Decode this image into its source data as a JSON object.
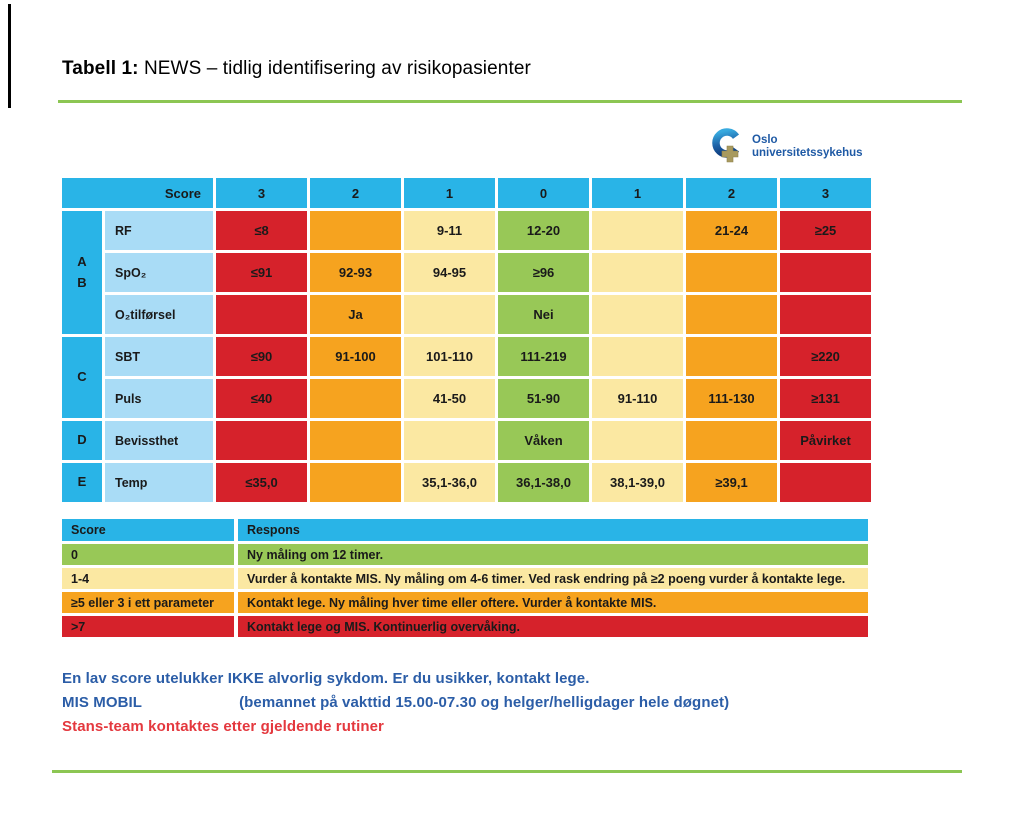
{
  "page": {
    "title_bold": "Tabell 1:",
    "title_rest": " NEWS – tidlig identifisering av risikopasienter"
  },
  "logo": {
    "line1": "Oslo",
    "line2": "universitetssykehus"
  },
  "colors": {
    "cyan": "#29B4E7",
    "light_blue": "#A9DCF6",
    "red": "#D6222B",
    "orange": "#F6A31F",
    "yellow": "#FBE8A2",
    "green": "#98C857",
    "line_green": "#8CC653",
    "note_blue": "#2B5DA7",
    "note_red": "#E4383E",
    "logo_blue": "#1F5AA5"
  },
  "news_table": {
    "score_header": "Score",
    "score_columns": [
      "3",
      "2",
      "1",
      "0",
      "1",
      "2",
      "3"
    ],
    "groups": [
      {
        "letters": [
          "A",
          "B"
        ],
        "rows": [
          {
            "param": "RF",
            "cells": [
              {
                "t": "≤8",
                "c": "red"
              },
              {
                "t": "",
                "c": "orange"
              },
              {
                "t": "9-11",
                "c": "yellow"
              },
              {
                "t": "12-20",
                "c": "green"
              },
              {
                "t": "",
                "c": "yellow"
              },
              {
                "t": "21-24",
                "c": "orange"
              },
              {
                "t": "≥25",
                "c": "red"
              }
            ]
          },
          {
            "param": "SpO₂",
            "cells": [
              {
                "t": "≤91",
                "c": "red"
              },
              {
                "t": "92-93",
                "c": "orange"
              },
              {
                "t": "94-95",
                "c": "yellow"
              },
              {
                "t": "≥96",
                "c": "green"
              },
              {
                "t": "",
                "c": "yellow"
              },
              {
                "t": "",
                "c": "orange"
              },
              {
                "t": "",
                "c": "red"
              }
            ]
          },
          {
            "param": "O₂tilførsel",
            "cells": [
              {
                "t": "",
                "c": "red"
              },
              {
                "t": "Ja",
                "c": "orange"
              },
              {
                "t": "",
                "c": "yellow"
              },
              {
                "t": "Nei",
                "c": "green"
              },
              {
                "t": "",
                "c": "yellow"
              },
              {
                "t": "",
                "c": "orange"
              },
              {
                "t": "",
                "c": "red"
              }
            ]
          }
        ]
      },
      {
        "letters": [
          "C"
        ],
        "rows": [
          {
            "param": "SBT",
            "cells": [
              {
                "t": "≤90",
                "c": "red"
              },
              {
                "t": "91-100",
                "c": "orange"
              },
              {
                "t": "101-110",
                "c": "yellow"
              },
              {
                "t": "111-219",
                "c": "green"
              },
              {
                "t": "",
                "c": "yellow"
              },
              {
                "t": "",
                "c": "orange"
              },
              {
                "t": "≥220",
                "c": "red"
              }
            ]
          },
          {
            "param": "Puls",
            "cells": [
              {
                "t": "≤40",
                "c": "red"
              },
              {
                "t": "",
                "c": "orange"
              },
              {
                "t": "41-50",
                "c": "yellow"
              },
              {
                "t": "51-90",
                "c": "green"
              },
              {
                "t": "91-110",
                "c": "yellow"
              },
              {
                "t": "111-130",
                "c": "orange"
              },
              {
                "t": "≥131",
                "c": "red"
              }
            ]
          }
        ]
      },
      {
        "letters": [
          "D"
        ],
        "rows": [
          {
            "param": "Bevissthet",
            "cells": [
              {
                "t": "",
                "c": "red"
              },
              {
                "t": "",
                "c": "orange"
              },
              {
                "t": "",
                "c": "yellow"
              },
              {
                "t": "Våken",
                "c": "green"
              },
              {
                "t": "",
                "c": "yellow"
              },
              {
                "t": "",
                "c": "orange"
              },
              {
                "t": "Påvirket",
                "c": "red"
              }
            ]
          }
        ]
      },
      {
        "letters": [
          "E"
        ],
        "rows": [
          {
            "param": "Temp",
            "cells": [
              {
                "t": "≤35,0",
                "c": "red"
              },
              {
                "t": "",
                "c": "orange"
              },
              {
                "t": "35,1-36,0",
                "c": "yellow"
              },
              {
                "t": "36,1-38,0",
                "c": "green"
              },
              {
                "t": "38,1-39,0",
                "c": "yellow"
              },
              {
                "t": "≥39,1",
                "c": "orange"
              },
              {
                "t": "",
                "c": "red"
              }
            ]
          }
        ]
      }
    ]
  },
  "response_table": {
    "headers": [
      "Score",
      "Respons"
    ],
    "rows": [
      {
        "score": "0",
        "respons": "Ny måling om 12 timer.",
        "c": "green"
      },
      {
        "score": "1-4",
        "respons": "Vurder å kontakte MIS. Ny måling om 4-6 timer. Ved rask endring på ≥2 poeng vurder å kontakte lege.",
        "c": "yellow"
      },
      {
        "score": "≥5 eller 3 i ett parameter",
        "respons": "Kontakt lege. Ny måling hver time eller oftere. Vurder å kontakte MIS.",
        "c": "orange"
      },
      {
        "score": ">7",
        "respons": "Kontakt lege og MIS. Kontinuerlig overvåking.",
        "c": "red"
      }
    ]
  },
  "footer": {
    "line1": "En lav score utelukker IKKE alvorlig sykdom. Er du usikker, kontakt lege.",
    "line2_prefix": "MIS MOBIL",
    "line2_suffix": "(bemannet på vakttid 15.00-07.30 og helger/helligdager hele døgnet)",
    "line3": "Stans-team kontaktes etter gjeldende rutiner"
  }
}
